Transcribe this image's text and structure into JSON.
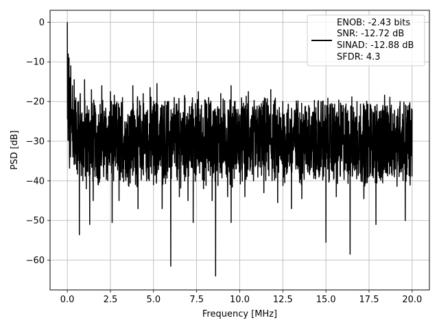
{
  "chart_data": {
    "type": "line",
    "xlabel": "Frequency [MHz]",
    "ylabel": "PSD [dB]",
    "xlim": [
      -1.0,
      21.0
    ],
    "ylim": [
      -67.5,
      3.0
    ],
    "xticks": [
      0.0,
      2.5,
      5.0,
      7.5,
      10.0,
      12.5,
      15.0,
      17.5,
      20.0
    ],
    "xtick_labels": [
      "0.0",
      "2.5",
      "5.0",
      "7.5",
      "10.0",
      "12.5",
      "15.0",
      "17.5",
      "20.0"
    ],
    "yticks": [
      0,
      -10,
      -20,
      -30,
      -40,
      -50,
      -60
    ],
    "ytick_labels": [
      "0",
      "−10",
      "−20",
      "−30",
      "−40",
      "−50",
      "−60"
    ],
    "grid": true,
    "legend": {
      "placement": "top-right",
      "entries": [
        "ENOB: -2.43 bits",
        "SNR: -12.72 dB",
        "SINAD: -12.88 dB",
        "SFDR: 4.3"
      ]
    },
    "series": [
      {
        "color": "#000000",
        "noise_floor_db": -30,
        "points": [
          [
            0.0,
            0.0
          ],
          [
            0.02,
            -21.5
          ],
          [
            0.05,
            -8.0
          ],
          [
            0.08,
            -12.0
          ],
          [
            0.1,
            -9.0
          ],
          [
            0.13,
            -36.8
          ],
          [
            0.16,
            -14.0
          ],
          [
            0.2,
            -11.0
          ],
          [
            0.25,
            -22.0
          ],
          [
            0.3,
            -16.0
          ],
          [
            0.35,
            -28.0
          ],
          [
            0.4,
            -14.5
          ],
          [
            0.45,
            -32.0
          ],
          [
            0.5,
            -25.0
          ],
          [
            0.55,
            -33.0
          ],
          [
            0.65,
            -20.0
          ],
          [
            0.7,
            -53.6
          ],
          [
            0.75,
            -18.0
          ],
          [
            0.9,
            -40.0
          ],
          [
            1.0,
            -14.5
          ],
          [
            1.1,
            -42.0
          ],
          [
            1.2,
            -23.0
          ],
          [
            1.3,
            -51.0
          ],
          [
            1.4,
            -17.0
          ],
          [
            1.5,
            -45.0
          ],
          [
            1.6,
            -21.0
          ],
          [
            1.8,
            -41.0
          ],
          [
            2.0,
            -16.0
          ],
          [
            2.3,
            -38.0
          ],
          [
            2.5,
            -17.5
          ],
          [
            2.6,
            -50.5
          ],
          [
            2.8,
            -22.0
          ],
          [
            3.0,
            -45.0
          ],
          [
            3.2,
            -19.0
          ],
          [
            3.5,
            -38.0
          ],
          [
            3.8,
            -16.0
          ],
          [
            4.1,
            -47.0
          ],
          [
            4.4,
            -18.0
          ],
          [
            4.6,
            -40.0
          ],
          [
            4.8,
            -16.5
          ],
          [
            5.0,
            -41.0
          ],
          [
            5.2,
            -15.5
          ],
          [
            5.5,
            -47.0
          ],
          [
            5.8,
            -20.0
          ],
          [
            6.0,
            -61.5
          ],
          [
            6.2,
            -19.0
          ],
          [
            6.5,
            -44.0
          ],
          [
            6.8,
            -18.5
          ],
          [
            7.0,
            -45.0
          ],
          [
            7.3,
            -22.0
          ],
          [
            7.3,
            -50.5
          ],
          [
            7.6,
            -17.5
          ],
          [
            7.9,
            -42.0
          ],
          [
            8.2,
            -19.0
          ],
          [
            8.4,
            -45.0
          ],
          [
            8.6,
            -64.0
          ],
          [
            8.9,
            -18.0
          ],
          [
            9.3,
            -44.0
          ],
          [
            9.5,
            -16.0
          ],
          [
            9.5,
            -50.5
          ],
          [
            9.9,
            -22.0
          ],
          [
            10.3,
            -44.0
          ],
          [
            10.5,
            -17.5
          ],
          [
            10.8,
            -40.0
          ],
          [
            11.1,
            -22.0
          ],
          [
            11.4,
            -43.0
          ],
          [
            11.8,
            -17.0
          ],
          [
            12.2,
            -45.5
          ],
          [
            12.5,
            -20.0
          ],
          [
            13.0,
            -47.0
          ],
          [
            13.3,
            -20.5
          ],
          [
            13.6,
            -44.5
          ],
          [
            14.0,
            -21.0
          ],
          [
            14.4,
            -39.5
          ],
          [
            14.8,
            -20.0
          ],
          [
            15.0,
            -55.5
          ],
          [
            15.3,
            -20.5
          ],
          [
            15.6,
            -44.0
          ],
          [
            16.0,
            -21.0
          ],
          [
            16.4,
            -58.5
          ],
          [
            16.8,
            -20.0
          ],
          [
            17.2,
            -44.5
          ],
          [
            17.6,
            -21.0
          ],
          [
            17.9,
            -51.0
          ],
          [
            18.3,
            -21.0
          ],
          [
            18.8,
            -38.0
          ],
          [
            19.3,
            -20.0
          ],
          [
            19.6,
            -50.0
          ],
          [
            20.0,
            -22.0
          ]
        ]
      }
    ]
  }
}
